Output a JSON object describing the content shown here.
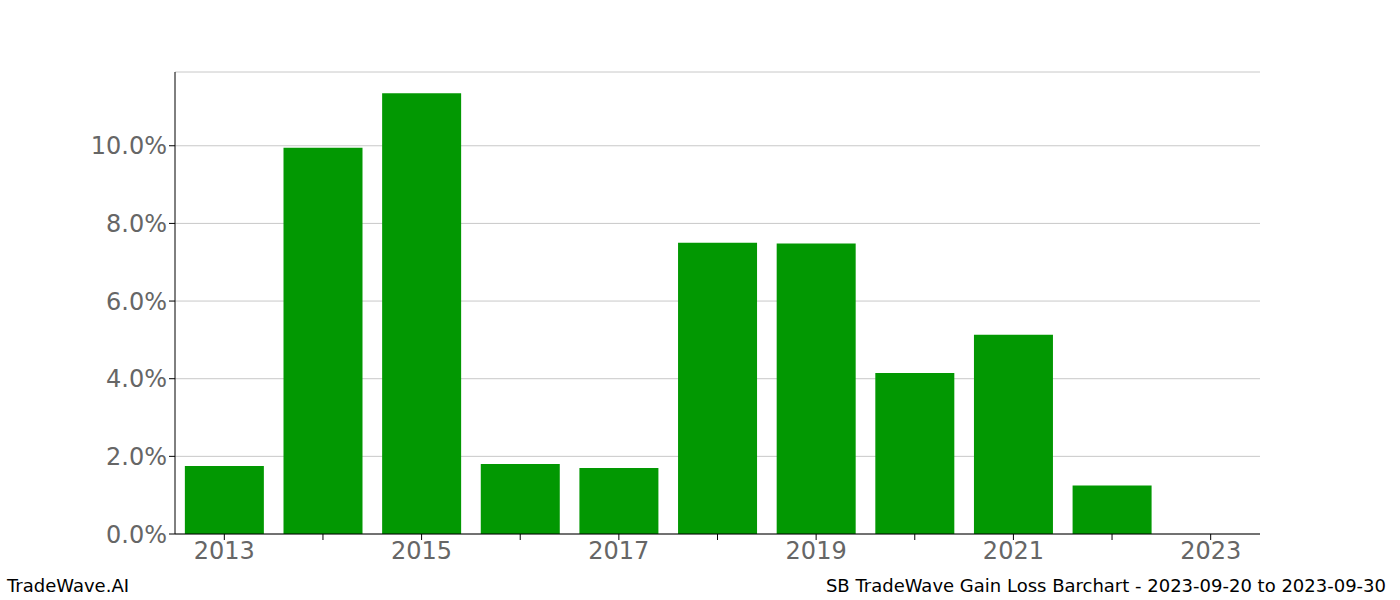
{
  "chart_data": {
    "type": "bar",
    "title": "SB TradeWave Gain Loss Barchart - 2023-09-20 to 2023-09-30",
    "annotations": [
      "TradeWave.AI"
    ],
    "categories": [
      "2013",
      null,
      "2015",
      null,
      "2017",
      null,
      "2019",
      null,
      "2021",
      null,
      "2023"
    ],
    "values": [
      1.75,
      9.95,
      11.35,
      1.8,
      1.7,
      7.5,
      7.48,
      4.15,
      5.13,
      1.25,
      null
    ],
    "color": "#029802",
    "ylim": [
      0,
      11.9
    ],
    "yticks": [
      {
        "value": 0,
        "label": "0.0%"
      },
      {
        "value": 2,
        "label": "2.0%"
      },
      {
        "value": 4,
        "label": "4.0%"
      },
      {
        "value": 6,
        "label": "6.0%"
      },
      {
        "value": 8,
        "label": "8.0%"
      },
      {
        "value": 10,
        "label": "10.0%"
      }
    ],
    "grid": true
  }
}
